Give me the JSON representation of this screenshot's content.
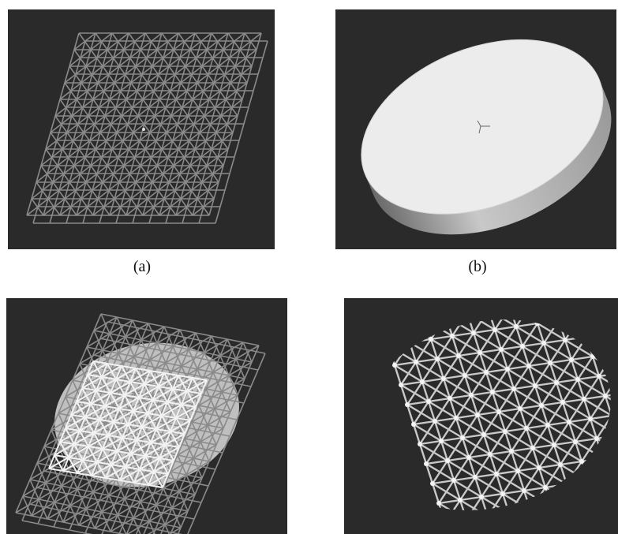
{
  "figure": {
    "captions": {
      "a": "(a)",
      "b": "(b)"
    },
    "panels": [
      {
        "id": "a",
        "content": "lattice-block-icon"
      },
      {
        "id": "b",
        "content": "solid-disk-icon"
      },
      {
        "id": "c",
        "content": "lattice-disk-overlay-icon"
      },
      {
        "id": "d",
        "content": "lattice-disk-icon"
      }
    ],
    "colors": {
      "background": "#2a2a2a",
      "strut": "#8c8c8c",
      "disk": "#e8e8e8"
    }
  }
}
